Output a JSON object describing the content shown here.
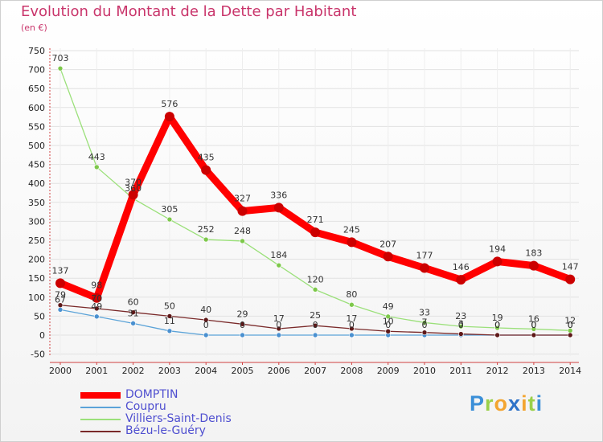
{
  "title": "Evolution du Montant de la Dette par Habitant",
  "subtitle": "(en €)",
  "brand": {
    "letters": [
      {
        "ch": "P",
        "color": "#3b8fd8"
      },
      {
        "ch": "r",
        "color": "#9ad04a"
      },
      {
        "ch": "o",
        "color": "#f3a531"
      },
      {
        "ch": "x",
        "color": "#2f73c8"
      },
      {
        "ch": "i",
        "color": "#f3a531"
      },
      {
        "ch": "t",
        "color": "#9ad04a"
      },
      {
        "ch": "i",
        "color": "#3b8fd8"
      }
    ]
  },
  "chart_data": {
    "type": "line",
    "x": [
      "2000",
      "2001",
      "2002",
      "2003",
      "2004",
      "2005",
      "2006",
      "2007",
      "2008",
      "2009",
      "2010",
      "2011",
      "2012",
      "2013",
      "2014"
    ],
    "yticks": [
      750,
      700,
      650,
      600,
      550,
      500,
      450,
      400,
      350,
      300,
      250,
      200,
      150,
      100,
      50,
      0,
      -50
    ],
    "ylim": [
      -50,
      750
    ],
    "legend_position": "bottom-left",
    "series": [
      {
        "name": "DOMPTIN",
        "color": "#ff0000",
        "marker_color": "#cc0000",
        "legend_text_color": "#4f4fd0",
        "values": [
          137,
          98,
          370,
          576,
          435,
          327,
          336,
          271,
          245,
          207,
          177,
          146,
          194,
          183,
          147
        ],
        "labels": [
          "137",
          "98",
          "370",
          "576",
          "435",
          "327",
          "336",
          "271",
          "245",
          "207",
          "177",
          "146",
          "194",
          "183",
          "147"
        ]
      },
      {
        "name": "Coupru",
        "color": "#5ba3d8",
        "marker_color": "#4a90d0",
        "legend_text_color": "#4f4fd0",
        "values": [
          67,
          49,
          31,
          11,
          0,
          0,
          0,
          0,
          0,
          0,
          0,
          0,
          0,
          0,
          0
        ],
        "labels": [
          "67",
          "49",
          "31",
          "11",
          "0",
          "0",
          "0",
          "0",
          "0",
          "0",
          "0",
          "0",
          "0",
          "0",
          "0"
        ]
      },
      {
        "name": "Villiers-Saint-Denis",
        "color": "#9be07a",
        "marker_color": "#7dc84a",
        "legend_text_color": "#4f4fd0",
        "values": [
          703,
          443,
          360,
          305,
          252,
          248,
          184,
          120,
          80,
          49,
          33,
          23,
          19,
          16,
          12
        ],
        "labels": [
          "703",
          "443",
          "360",
          "305",
          "252",
          "248",
          "184",
          "120",
          "80",
          "49",
          "33",
          "23",
          "19",
          "16",
          "12"
        ]
      },
      {
        "name": "Bézu-le-Guéry",
        "color": "#7a2a2a",
        "marker_color": "#5e1818",
        "legend_text_color": "#4f4fd0",
        "values": [
          79,
          70,
          60,
          50,
          40,
          29,
          17,
          25,
          17,
          10,
          7,
          3,
          0,
          0,
          0
        ],
        "labels": [
          "79",
          "70",
          "60",
          "50",
          "40",
          "29",
          "17",
          "25",
          "17",
          "10",
          "7",
          "3",
          "0",
          "0",
          "0"
        ]
      }
    ]
  }
}
